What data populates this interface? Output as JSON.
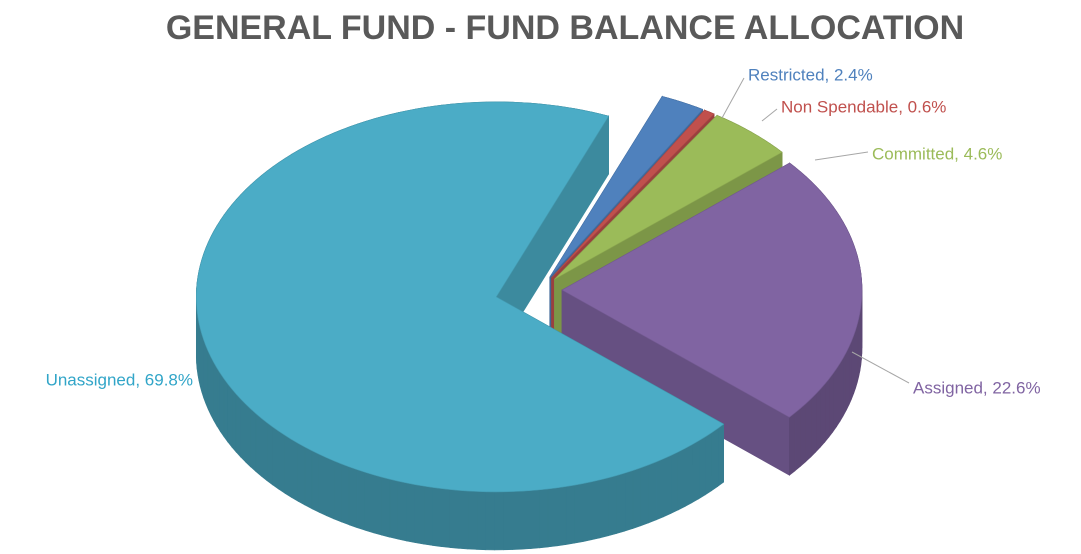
{
  "chart_data": {
    "type": "pie",
    "title": "GENERAL FUND - FUND BALANCE ALLOCATION",
    "values": [
      2.4,
      0.6,
      4.6,
      22.6,
      69.8
    ],
    "value_labels": [
      "Restricted, 2.4%",
      "Non Spendable, 0.6%",
      "Committed, 4.6%",
      "Assigned, 22.6%",
      "Unassigned, 69.8%"
    ],
    "colors": [
      "#4f81bd",
      "#c0504d",
      "#9bbb59",
      "#8064a2",
      "#4bacc6"
    ],
    "label_colors": [
      "#4f81bd",
      "#c0504d",
      "#9bbb59",
      "#8064a2",
      "#31a5c8"
    ],
    "exploded": true,
    "three_d": true
  }
}
